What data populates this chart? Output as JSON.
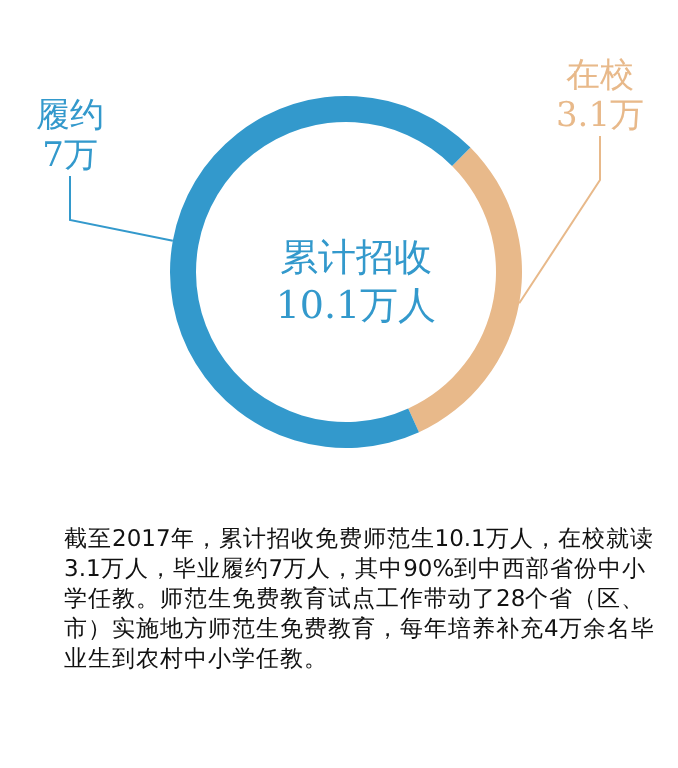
{
  "chart_data": {
    "type": "donut",
    "title": "累计招收\n10.1万人",
    "categories": [
      "在校",
      "履约"
    ],
    "values": [
      3.1,
      7
    ],
    "value_labels": [
      "3.1万",
      "7万"
    ],
    "colors": [
      "#e8b98a",
      "#3399cc"
    ],
    "legend": false,
    "annotations": [
      "截至2017年，累计招收免费师范生10.1万人，在校就读3.1万人，毕业履约7万人，其中90%到中西部省份中小学任教。师范生免费教育试点工作带动了28个省（区、市）实施地方师范生免费教育，每年培养补充4万余名毕业生到农村中小学任教。"
    ]
  }
}
